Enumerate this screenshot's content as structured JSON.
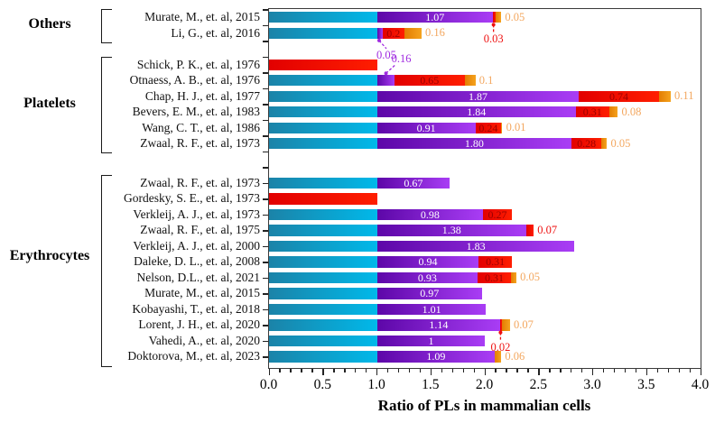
{
  "colors": {
    "cyan_start": "#1b83a8",
    "cyan_end": "#00b9ea",
    "purple_start": "#5d07a8",
    "purple_end": "#a93df5",
    "red_start": "#e20000",
    "red_end": "#ff1e00",
    "orange_start": "#e37d02",
    "orange_end": "#f5a31e",
    "label_on_purple": "#ffffff",
    "label_on_red": "#9b0000",
    "label_orange": "#f3a75f",
    "label_red": "#ee1111",
    "label_purple": "#a02be0",
    "axis": "#3a3a3a"
  },
  "chart_data": {
    "type": "bar",
    "orientation": "horizontal",
    "stacked": true,
    "xlabel": "Ratio of PLs in mammalian cells",
    "xlim": [
      0.0,
      4.0
    ],
    "x_major_ticks": [
      0.0,
      0.5,
      1.0,
      1.5,
      2.0,
      2.5,
      3.0,
      3.5,
      4.0
    ],
    "x_tick_labels": [
      "0.0",
      "0.5",
      "1.0",
      "1.5",
      "2.0",
      "2.5",
      "3.0",
      "3.5",
      "4.0"
    ],
    "x_minor_step": 0.1,
    "legend": "none",
    "groups": [
      {
        "label": "Others",
        "rows": [
          {
            "label": "Murate, M., et. al, 2015",
            "segments": [
              {
                "color": "cyan",
                "value": 1.0
              },
              {
                "color": "purple",
                "value": 1.07,
                "label": "1.07",
                "label_pos": "inside"
              },
              {
                "color": "red",
                "value": 0.03,
                "label": "0.03",
                "label_pos": "callout_below"
              },
              {
                "color": "orange",
                "value": 0.05,
                "label": "0.05",
                "label_pos": "right"
              }
            ]
          },
          {
            "label": "Li, G., et. al, 2016",
            "segments": [
              {
                "color": "cyan",
                "value": 1.0
              },
              {
                "color": "purple",
                "value": 0.05,
                "label": "0.05",
                "label_pos": "callout_below"
              },
              {
                "color": "red",
                "value": 0.2,
                "label": "0.2",
                "label_pos": "inside"
              },
              {
                "color": "orange",
                "value": 0.16,
                "label": "0.16",
                "label_pos": "right"
              }
            ]
          }
        ]
      },
      {
        "label": "Platelets",
        "rows": [
          {
            "label": "Schick, P. K., et. al, 1976",
            "segments": [
              {
                "color": "red",
                "value": 1.0
              }
            ]
          },
          {
            "label": "Otnaess, A. B., et. al, 1976",
            "segments": [
              {
                "color": "cyan",
                "value": 1.0
              },
              {
                "color": "purple",
                "value": 0.16,
                "label": "0.16",
                "label_pos": "callout_above"
              },
              {
                "color": "red",
                "value": 0.65,
                "label": "0.65",
                "label_pos": "inside"
              },
              {
                "color": "orange",
                "value": 0.1,
                "label": "0.1",
                "label_pos": "right"
              }
            ]
          },
          {
            "label": "Chap, H. J., et. al, 1977",
            "segments": [
              {
                "color": "cyan",
                "value": 1.0
              },
              {
                "color": "purple",
                "value": 1.87,
                "label": "1.87",
                "label_pos": "inside"
              },
              {
                "color": "red",
                "value": 0.74,
                "label": "0.74",
                "label_pos": "inside"
              },
              {
                "color": "orange",
                "value": 0.11,
                "label": "0.11",
                "label_pos": "right"
              }
            ]
          },
          {
            "label": "Bevers, E. M., et. al, 1983",
            "segments": [
              {
                "color": "cyan",
                "value": 1.0
              },
              {
                "color": "purple",
                "value": 1.84,
                "label": "1.84",
                "label_pos": "inside"
              },
              {
                "color": "red",
                "value": 0.31,
                "label": "0.31",
                "label_pos": "inside"
              },
              {
                "color": "orange",
                "value": 0.08,
                "label": "0.08",
                "label_pos": "right"
              }
            ]
          },
          {
            "label": "Wang, C. T., et. al, 1986",
            "segments": [
              {
                "color": "cyan",
                "value": 1.0
              },
              {
                "color": "purple",
                "value": 0.91,
                "label": "0.91",
                "label_pos": "inside"
              },
              {
                "color": "red",
                "value": 0.24,
                "label": "0.24",
                "label_pos": "inside"
              },
              {
                "color": "orange",
                "value": 0.01,
                "label": "0.01",
                "label_pos": "right"
              }
            ]
          },
          {
            "label": "Zwaal, R. F., et. al, 1973",
            "segments": [
              {
                "color": "cyan",
                "value": 1.0
              },
              {
                "color": "purple",
                "value": 1.8,
                "label": "1.80",
                "label_pos": "inside"
              },
              {
                "color": "red",
                "value": 0.28,
                "label": "0.28",
                "label_pos": "inside"
              },
              {
                "color": "orange",
                "value": 0.05,
                "label": "0.05",
                "label_pos": "right"
              }
            ]
          }
        ]
      },
      {
        "label": "Erythrocytes",
        "rows": [
          {
            "label": "Zwaal, R. F., et. al, 1973",
            "segments": [
              {
                "color": "cyan",
                "value": 1.0
              },
              {
                "color": "purple",
                "value": 0.67,
                "label": "0.67",
                "label_pos": "inside"
              }
            ]
          },
          {
            "label": "Gordesky, S. E., et. al, 1973",
            "segments": [
              {
                "color": "red",
                "value": 1.0
              }
            ]
          },
          {
            "label": "Verkleij, A. J., et. al, 1973",
            "segments": [
              {
                "color": "cyan",
                "value": 1.0
              },
              {
                "color": "purple",
                "value": 0.98,
                "label": "0.98",
                "label_pos": "inside"
              },
              {
                "color": "red",
                "value": 0.27,
                "label": "0.27",
                "label_pos": "inside"
              }
            ]
          },
          {
            "label": "Zwaal, R. F., et. al, 1975",
            "segments": [
              {
                "color": "cyan",
                "value": 1.0
              },
              {
                "color": "purple",
                "value": 1.38,
                "label": "1.38",
                "label_pos": "inside"
              },
              {
                "color": "red",
                "value": 0.07,
                "label": "0.07",
                "label_pos": "right"
              }
            ]
          },
          {
            "label": "Verkleij, A. J., et. al, 2000",
            "segments": [
              {
                "color": "cyan",
                "value": 1.0
              },
              {
                "color": "purple",
                "value": 1.83,
                "label": "1.83",
                "label_pos": "inside"
              }
            ]
          },
          {
            "label": "Daleke, D. L., et. al, 2008",
            "segments": [
              {
                "color": "cyan",
                "value": 1.0
              },
              {
                "color": "purple",
                "value": 0.94,
                "label": "0.94",
                "label_pos": "inside"
              },
              {
                "color": "red",
                "value": 0.31,
                "label": "0.31",
                "label_pos": "inside"
              }
            ]
          },
          {
            "label": "Nelson, D.L., et. al, 2021",
            "segments": [
              {
                "color": "cyan",
                "value": 1.0
              },
              {
                "color": "purple",
                "value": 0.93,
                "label": "0.93",
                "label_pos": "inside"
              },
              {
                "color": "red",
                "value": 0.31,
                "label": "0.31",
                "label_pos": "inside"
              },
              {
                "color": "orange",
                "value": 0.05,
                "label": "0.05",
                "label_pos": "right"
              }
            ]
          },
          {
            "label": "Murate, M., et. al, 2015",
            "segments": [
              {
                "color": "cyan",
                "value": 1.0
              },
              {
                "color": "purple",
                "value": 0.97,
                "label": "0.97",
                "label_pos": "inside"
              }
            ]
          },
          {
            "label": "Kobayashi, T., et. al, 2018",
            "segments": [
              {
                "color": "cyan",
                "value": 1.0
              },
              {
                "color": "purple",
                "value": 1.01,
                "label": "1.01",
                "label_pos": "inside"
              }
            ]
          },
          {
            "label": "Lorent, J. H., et. al, 2020",
            "segments": [
              {
                "color": "cyan",
                "value": 1.0
              },
              {
                "color": "purple",
                "value": 1.14,
                "label": "1.14",
                "label_pos": "inside"
              },
              {
                "color": "red",
                "value": 0.02,
                "label": "0.02",
                "label_pos": "callout_below"
              },
              {
                "color": "orange",
                "value": 0.07,
                "label": "0.07",
                "label_pos": "right"
              }
            ]
          },
          {
            "label": "Vahedi, A., et. al, 2020",
            "segments": [
              {
                "color": "cyan",
                "value": 1.0
              },
              {
                "color": "purple",
                "value": 1.0,
                "label": "1",
                "label_pos": "inside"
              }
            ]
          },
          {
            "label": "Doktorova, M., et. al, 2023",
            "segments": [
              {
                "color": "cyan",
                "value": 1.0
              },
              {
                "color": "purple",
                "value": 1.09,
                "label": "1.09",
                "label_pos": "inside"
              },
              {
                "color": "orange",
                "value": 0.06,
                "label": "0.06",
                "label_pos": "right"
              }
            ]
          }
        ]
      }
    ]
  }
}
